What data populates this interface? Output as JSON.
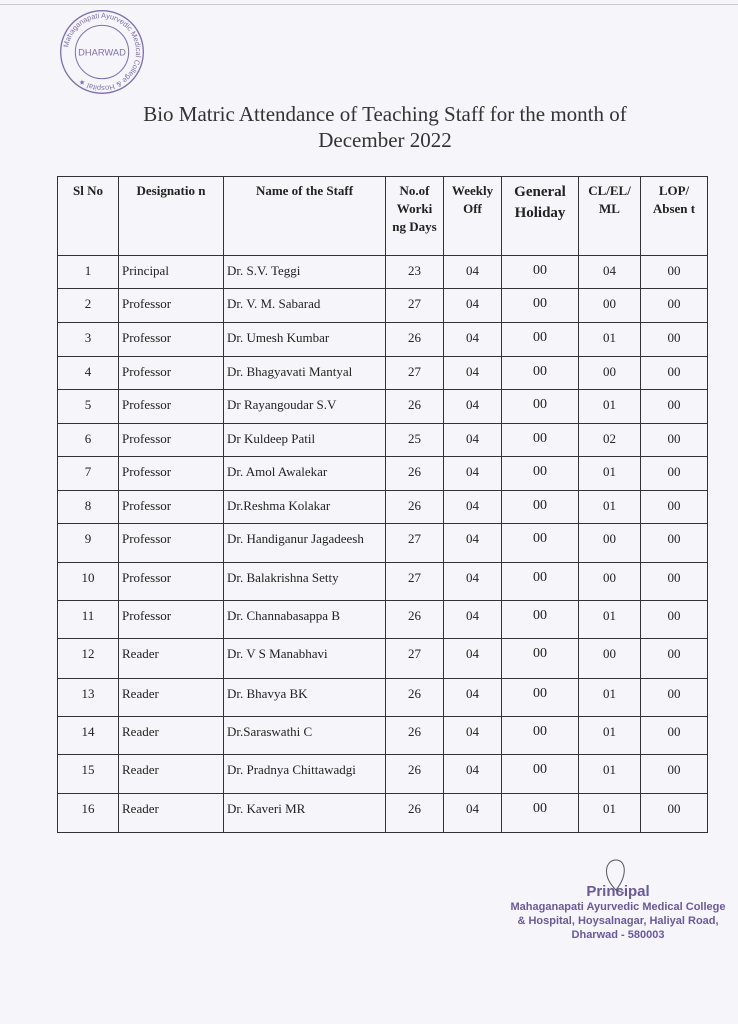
{
  "stamp": {
    "text": "Mahaganapati Ayurvedic Medical College & Hospital",
    "center": "DHARWAD"
  },
  "title": {
    "line1": "Bio Matric Attendance of Teaching Staff for the month of",
    "line2": "December 2022"
  },
  "table": {
    "headers": [
      "Sl No",
      "Designatio n",
      "Name of the Staff",
      "No.of Worki ng Days",
      "Weekly Off",
      "General Holiday",
      "CL/EL/ ML",
      "LOP/ Absen t"
    ],
    "rows": [
      [
        "1",
        "Principal",
        "Dr. S.V. Teggi",
        "23",
        "04",
        "00",
        "04",
        "00"
      ],
      [
        "2",
        "Professor",
        "Dr. V. M. Sabarad",
        "27",
        "04",
        "00",
        "00",
        "00"
      ],
      [
        "3",
        "Professor",
        "Dr. Umesh Kumbar",
        "26",
        "04",
        "00",
        "01",
        "00"
      ],
      [
        "4",
        "Professor",
        "Dr. Bhagyavati Mantyal",
        "27",
        "04",
        "00",
        "00",
        "00"
      ],
      [
        "5",
        "Professor",
        "Dr Rayangoudar S.V",
        "26",
        "04",
        "00",
        "01",
        "00"
      ],
      [
        "6",
        "Professor",
        "Dr Kuldeep Patil",
        "25",
        "04",
        "00",
        "02",
        "00"
      ],
      [
        "7",
        "Professor",
        "Dr. Amol Awalekar",
        "26",
        "04",
        "00",
        "01",
        "00"
      ],
      [
        "8",
        "Professor",
        "Dr.Reshma Kolakar",
        "26",
        "04",
        "00",
        "01",
        "00"
      ],
      [
        "9",
        "Professor",
        "Dr. Handiganur Jagadeesh",
        "27",
        "04",
        "00",
        "00",
        "00"
      ],
      [
        "10",
        "Professor",
        "Dr. Balakrishna Setty",
        "27",
        "04",
        "00",
        "00",
        "00"
      ],
      [
        "11",
        "Professor",
        "Dr. Channabasappa B",
        "26",
        "04",
        "00",
        "01",
        "00"
      ],
      [
        "12",
        "Reader",
        "Dr. V S Manabhavi",
        "27",
        "04",
        "00",
        "00",
        "00"
      ],
      [
        "13",
        "Reader",
        "Dr. Bhavya BK",
        "26",
        "04",
        "00",
        "01",
        "00"
      ],
      [
        "14",
        "Reader",
        "Dr.Saraswathi C",
        "26",
        "04",
        "00",
        "01",
        "00"
      ],
      [
        "15",
        "Reader",
        "Dr. Pradnya Chittawadgi",
        "26",
        "04",
        "00",
        "01",
        "00"
      ],
      [
        "16",
        "Reader",
        "Dr. Kaveri MR",
        "26",
        "04",
        "00",
        "01",
        "00"
      ]
    ]
  },
  "signature": {
    "title": "Principal",
    "line1": "Mahaganapati Ayurvedic Medical College",
    "line2": "& Hospital, Hoysalnagar, Haliyal Road,",
    "line3": "Dharwad - 580003"
  },
  "colors": {
    "stamp_ink": "#6a5a9c"
  }
}
